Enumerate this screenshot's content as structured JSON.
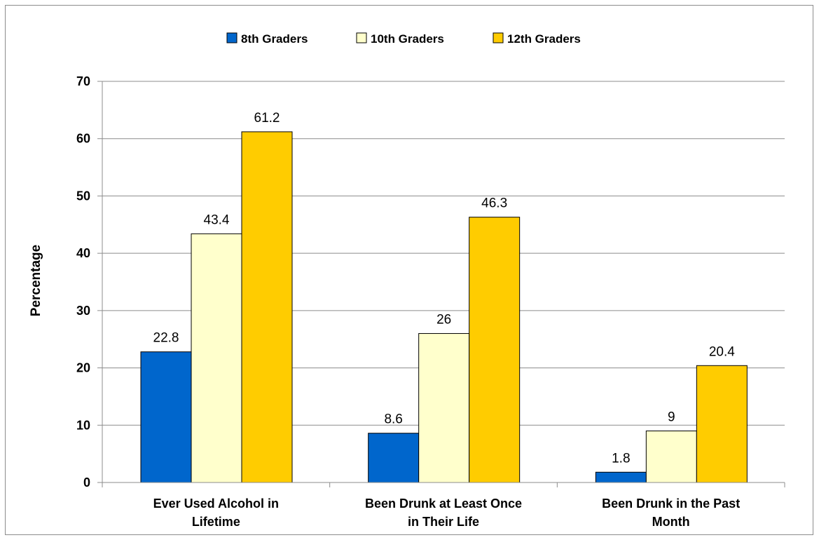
{
  "chart_data": {
    "type": "bar",
    "title": "",
    "xlabel": "",
    "ylabel": "Percentage",
    "ylim": [
      0,
      70
    ],
    "yticks": [
      0,
      10,
      20,
      30,
      40,
      50,
      60,
      70
    ],
    "grid": true,
    "legend_position": "top-center",
    "categories": [
      [
        "Ever Used Alcohol in",
        "Lifetime"
      ],
      [
        "Been Drunk at Least Once",
        "in Their Life"
      ],
      [
        "Been Drunk in the Past",
        "Month"
      ]
    ],
    "series": [
      {
        "name": "8th Graders",
        "color": "#0066CC",
        "values": [
          22.8,
          8.6,
          1.8
        ]
      },
      {
        "name": "10th Graders",
        "color": "#FFFFCC",
        "values": [
          43.4,
          26,
          9
        ]
      },
      {
        "name": "12th Graders",
        "color": "#FFCC00",
        "values": [
          61.2,
          46.3,
          20.4
        ]
      }
    ]
  }
}
